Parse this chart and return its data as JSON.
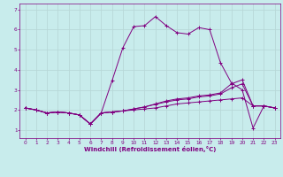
{
  "xlabel": "Windchill (Refroidissement éolien,°C)",
  "bg_color": "#c8ecec",
  "line_color": "#800080",
  "grid_color": "#b8d8d8",
  "xlim": [
    -0.5,
    23.5
  ],
  "ylim": [
    0.6,
    7.3
  ],
  "xticks": [
    0,
    1,
    2,
    3,
    4,
    5,
    6,
    7,
    8,
    9,
    10,
    11,
    12,
    13,
    14,
    15,
    16,
    17,
    18,
    19,
    20,
    21,
    22,
    23
  ],
  "yticks": [
    1,
    2,
    3,
    4,
    5,
    6,
    7
  ],
  "s1_x": [
    0,
    1,
    2,
    3,
    4,
    5,
    6,
    7,
    8,
    9,
    10,
    11,
    12,
    13,
    14,
    15,
    16,
    17,
    18,
    19,
    20,
    21,
    22,
    23
  ],
  "s1_y": [
    2.1,
    2.0,
    1.85,
    1.9,
    1.85,
    1.75,
    1.3,
    1.85,
    3.45,
    5.1,
    6.15,
    6.2,
    6.65,
    6.2,
    5.85,
    5.78,
    6.1,
    6.0,
    4.35,
    3.35,
    3.0,
    1.1,
    2.2,
    2.1
  ],
  "s2_x": [
    0,
    1,
    2,
    3,
    4,
    5,
    6,
    7,
    8,
    9,
    10,
    11,
    12,
    13,
    14,
    15,
    16,
    17,
    18,
    19,
    20,
    21,
    22,
    23
  ],
  "s2_y": [
    2.1,
    2.0,
    1.85,
    1.9,
    1.85,
    1.75,
    1.3,
    1.85,
    1.9,
    1.95,
    2.05,
    2.15,
    2.3,
    2.45,
    2.55,
    2.6,
    2.7,
    2.75,
    2.85,
    3.3,
    3.5,
    2.2,
    2.2,
    2.1
  ],
  "s3_x": [
    0,
    1,
    2,
    3,
    4,
    5,
    6,
    7,
    8,
    9,
    10,
    11,
    12,
    13,
    14,
    15,
    16,
    17,
    18,
    19,
    20,
    21,
    22,
    23
  ],
  "s3_y": [
    2.1,
    2.0,
    1.85,
    1.9,
    1.85,
    1.75,
    1.3,
    1.85,
    1.9,
    1.95,
    2.05,
    2.15,
    2.28,
    2.4,
    2.5,
    2.55,
    2.65,
    2.7,
    2.8,
    3.1,
    3.3,
    2.2,
    2.2,
    2.1
  ],
  "s4_x": [
    0,
    1,
    2,
    3,
    4,
    5,
    6,
    7,
    8,
    9,
    10,
    11,
    12,
    13,
    14,
    15,
    16,
    17,
    18,
    19,
    20,
    21,
    22,
    23
  ],
  "s4_y": [
    2.1,
    2.0,
    1.85,
    1.9,
    1.85,
    1.75,
    1.3,
    1.85,
    1.9,
    1.95,
    2.0,
    2.05,
    2.1,
    2.2,
    2.3,
    2.35,
    2.4,
    2.45,
    2.5,
    2.55,
    2.6,
    2.2,
    2.2,
    2.1
  ]
}
